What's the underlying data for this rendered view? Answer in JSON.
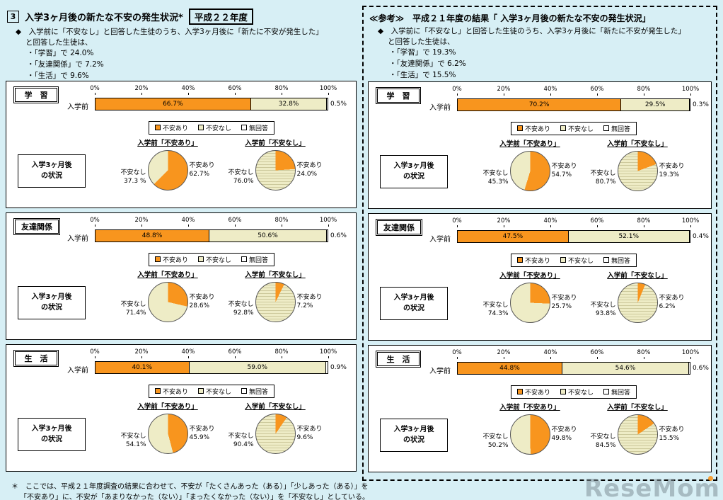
{
  "page": {
    "section_number": "3",
    "footnote_lines": [
      "＊　ここでは、平成２１年度調査の結果に合わせて、不安が「たくさんあった（ある）」「少しあった（ある）」を",
      "「不安あり」に、不安が「あまりなかった（ない）」「まったくなかった（ない）」を「不安なし」としている。"
    ],
    "watermark": "ReseMom"
  },
  "colors": {
    "background": "#D7EFF5",
    "anxious": "#F8951E",
    "not_anxious": "#EEECC6",
    "not_anxious_stripe": "#CCC89B",
    "no_answer": "#FFFFFF"
  },
  "strings": {
    "bar_row_label": "入学前",
    "legend": [
      "不安あり",
      "不安なし",
      "無回答"
    ],
    "axis_ticks": [
      "0%",
      "20%",
      "40%",
      "60%",
      "80%",
      "100%"
    ],
    "side_label_lines": [
      "入学3ヶ月後",
      "の状況"
    ]
  },
  "chart_data": [
    {
      "panel": "平成22年度",
      "title": "入学3ヶ月後の新たな不安の発生状況*",
      "title_box": "平成２２年度",
      "intro_lines": [
        "◆　入学前に「不安なし」と回答した生徒のうち、入学3ヶ月後に「新たに不安が発生した」",
        "と回答した生徒は、"
      ],
      "bullets": [
        "・「学習」で 24.0%",
        "・「友達関係」で 7.2%",
        "・「生活」で 9.6%"
      ],
      "sections": [
        {
          "label": "学　習",
          "bar": {
            "type": "stacked-bar",
            "row_label": "入学前",
            "categories": [
              "不安あり",
              "不安なし",
              "無回答"
            ],
            "values": [
              66.7,
              32.8,
              0.5
            ],
            "labels": [
              "66.7%",
              "32.8%",
              "0.5%"
            ],
            "xlim": [
              0,
              100
            ]
          },
          "pies": [
            {
              "type": "pie",
              "title": "入学前「不安あり」",
              "slices": [
                {
                  "name": "不安あり",
                  "value": 62.7,
                  "label": "62.7%"
                },
                {
                  "name": "不安なし",
                  "value": 37.3,
                  "label": "37.3 %"
                }
              ]
            },
            {
              "type": "pie",
              "title": "入学前「不安なし」",
              "slices": [
                {
                  "name": "不安あり",
                  "value": 24.0,
                  "label": "24.0%"
                },
                {
                  "name": "不安なし",
                  "value": 76.0,
                  "label": "76.0%"
                }
              ]
            }
          ]
        },
        {
          "label": "友達関係",
          "bar": {
            "type": "stacked-bar",
            "row_label": "入学前",
            "categories": [
              "不安あり",
              "不安なし",
              "無回答"
            ],
            "values": [
              48.8,
              50.6,
              0.6
            ],
            "labels": [
              "48.8%",
              "50.6%",
              "0.6%"
            ],
            "xlim": [
              0,
              100
            ]
          },
          "pies": [
            {
              "type": "pie",
              "title": "入学前「不安あり」",
              "slices": [
                {
                  "name": "不安あり",
                  "value": 28.6,
                  "label": "28.6%"
                },
                {
                  "name": "不安なし",
                  "value": 71.4,
                  "label": "71.4%"
                }
              ]
            },
            {
              "type": "pie",
              "title": "入学前「不安なし」",
              "slices": [
                {
                  "name": "不安あり",
                  "value": 7.2,
                  "label": "7.2%"
                },
                {
                  "name": "不安なし",
                  "value": 92.8,
                  "label": "92.8%"
                }
              ]
            }
          ]
        },
        {
          "label": "生　活",
          "bar": {
            "type": "stacked-bar",
            "row_label": "入学前",
            "categories": [
              "不安あり",
              "不安なし",
              "無回答"
            ],
            "values": [
              40.1,
              59.0,
              0.9
            ],
            "labels": [
              "40.1%",
              "59.0%",
              "0.9%"
            ],
            "xlim": [
              0,
              100
            ]
          },
          "pies": [
            {
              "type": "pie",
              "title": "入学前「不安あり」",
              "slices": [
                {
                  "name": "不安あり",
                  "value": 45.9,
                  "label": "45.9%"
                },
                {
                  "name": "不安なし",
                  "value": 54.1,
                  "label": "54.1%"
                }
              ]
            },
            {
              "type": "pie",
              "title": "入学前「不安なし」",
              "slices": [
                {
                  "name": "不安あり",
                  "value": 9.6,
                  "label": "9.6%"
                },
                {
                  "name": "不安なし",
                  "value": 90.4,
                  "label": "90.4%"
                }
              ]
            }
          ]
        }
      ]
    },
    {
      "panel": "平成21年度",
      "title": "≪参考≫　平成２１年度の結果「 入学3ヶ月後の新たな不安の発生状況」",
      "title_box": null,
      "intro_lines": [
        "◆　入学前に「不安なし」と回答した生徒のうち、入学3ヶ月後に「新たに不安が発生した」",
        "と回答した生徒は、"
      ],
      "bullets": [
        "・「学習」で 19.3%",
        "・「友達関係」で 6.2%",
        "・「生活」で 15.5%"
      ],
      "sections": [
        {
          "label": "学　習",
          "bar": {
            "type": "stacked-bar",
            "row_label": "入学前",
            "categories": [
              "不安あり",
              "不安なし",
              "無回答"
            ],
            "values": [
              70.2,
              29.5,
              0.3
            ],
            "labels": [
              "70.2%",
              "29.5%",
              "0.3%"
            ],
            "xlim": [
              0,
              100
            ]
          },
          "pies": [
            {
              "type": "pie",
              "title": "入学前「不安あり」",
              "slices": [
                {
                  "name": "不安あり",
                  "value": 54.7,
                  "label": "54.7%"
                },
                {
                  "name": "不安なし",
                  "value": 45.3,
                  "label": "45.3%"
                }
              ]
            },
            {
              "type": "pie",
              "title": "入学前「不安なし」",
              "slices": [
                {
                  "name": "不安あり",
                  "value": 19.3,
                  "label": "19.3%"
                },
                {
                  "name": "不安なし",
                  "value": 80.7,
                  "label": "80.7%"
                }
              ]
            }
          ]
        },
        {
          "label": "友達関係",
          "bar": {
            "type": "stacked-bar",
            "row_label": "入学前",
            "categories": [
              "不安あり",
              "不安なし",
              "無回答"
            ],
            "values": [
              47.5,
              52.1,
              0.4
            ],
            "labels": [
              "47.5%",
              "52.1%",
              "0.4%"
            ],
            "xlim": [
              0,
              100
            ]
          },
          "pies": [
            {
              "type": "pie",
              "title": "入学前「不安あり」",
              "slices": [
                {
                  "name": "不安あり",
                  "value": 25.7,
                  "label": "25.7%"
                },
                {
                  "name": "不安なし",
                  "value": 74.3,
                  "label": "74.3%"
                }
              ]
            },
            {
              "type": "pie",
              "title": "入学前「不安なし」",
              "slices": [
                {
                  "name": "不安あり",
                  "value": 6.2,
                  "label": "6.2%"
                },
                {
                  "name": "不安なし",
                  "value": 93.8,
                  "label": "93.8%"
                }
              ]
            }
          ]
        },
        {
          "label": "生　活",
          "bar": {
            "type": "stacked-bar",
            "row_label": "入学前",
            "categories": [
              "不安あり",
              "不安なし",
              "無回答"
            ],
            "values": [
              44.8,
              54.6,
              0.6
            ],
            "labels": [
              "44.8%",
              "54.6%",
              "0.6%"
            ],
            "xlim": [
              0,
              100
            ]
          },
          "pies": [
            {
              "type": "pie",
              "title": "入学前「不安あり」",
              "slices": [
                {
                  "name": "不安あり",
                  "value": 49.8,
                  "label": "49.8%"
                },
                {
                  "name": "不安なし",
                  "value": 50.2,
                  "label": "50.2%"
                }
              ]
            },
            {
              "type": "pie",
              "title": "入学前「不安なし」",
              "slices": [
                {
                  "name": "不安あり",
                  "value": 15.5,
                  "label": "15.5%"
                },
                {
                  "name": "不安なし",
                  "value": 84.5,
                  "label": "84.5%"
                }
              ]
            }
          ]
        }
      ]
    }
  ]
}
